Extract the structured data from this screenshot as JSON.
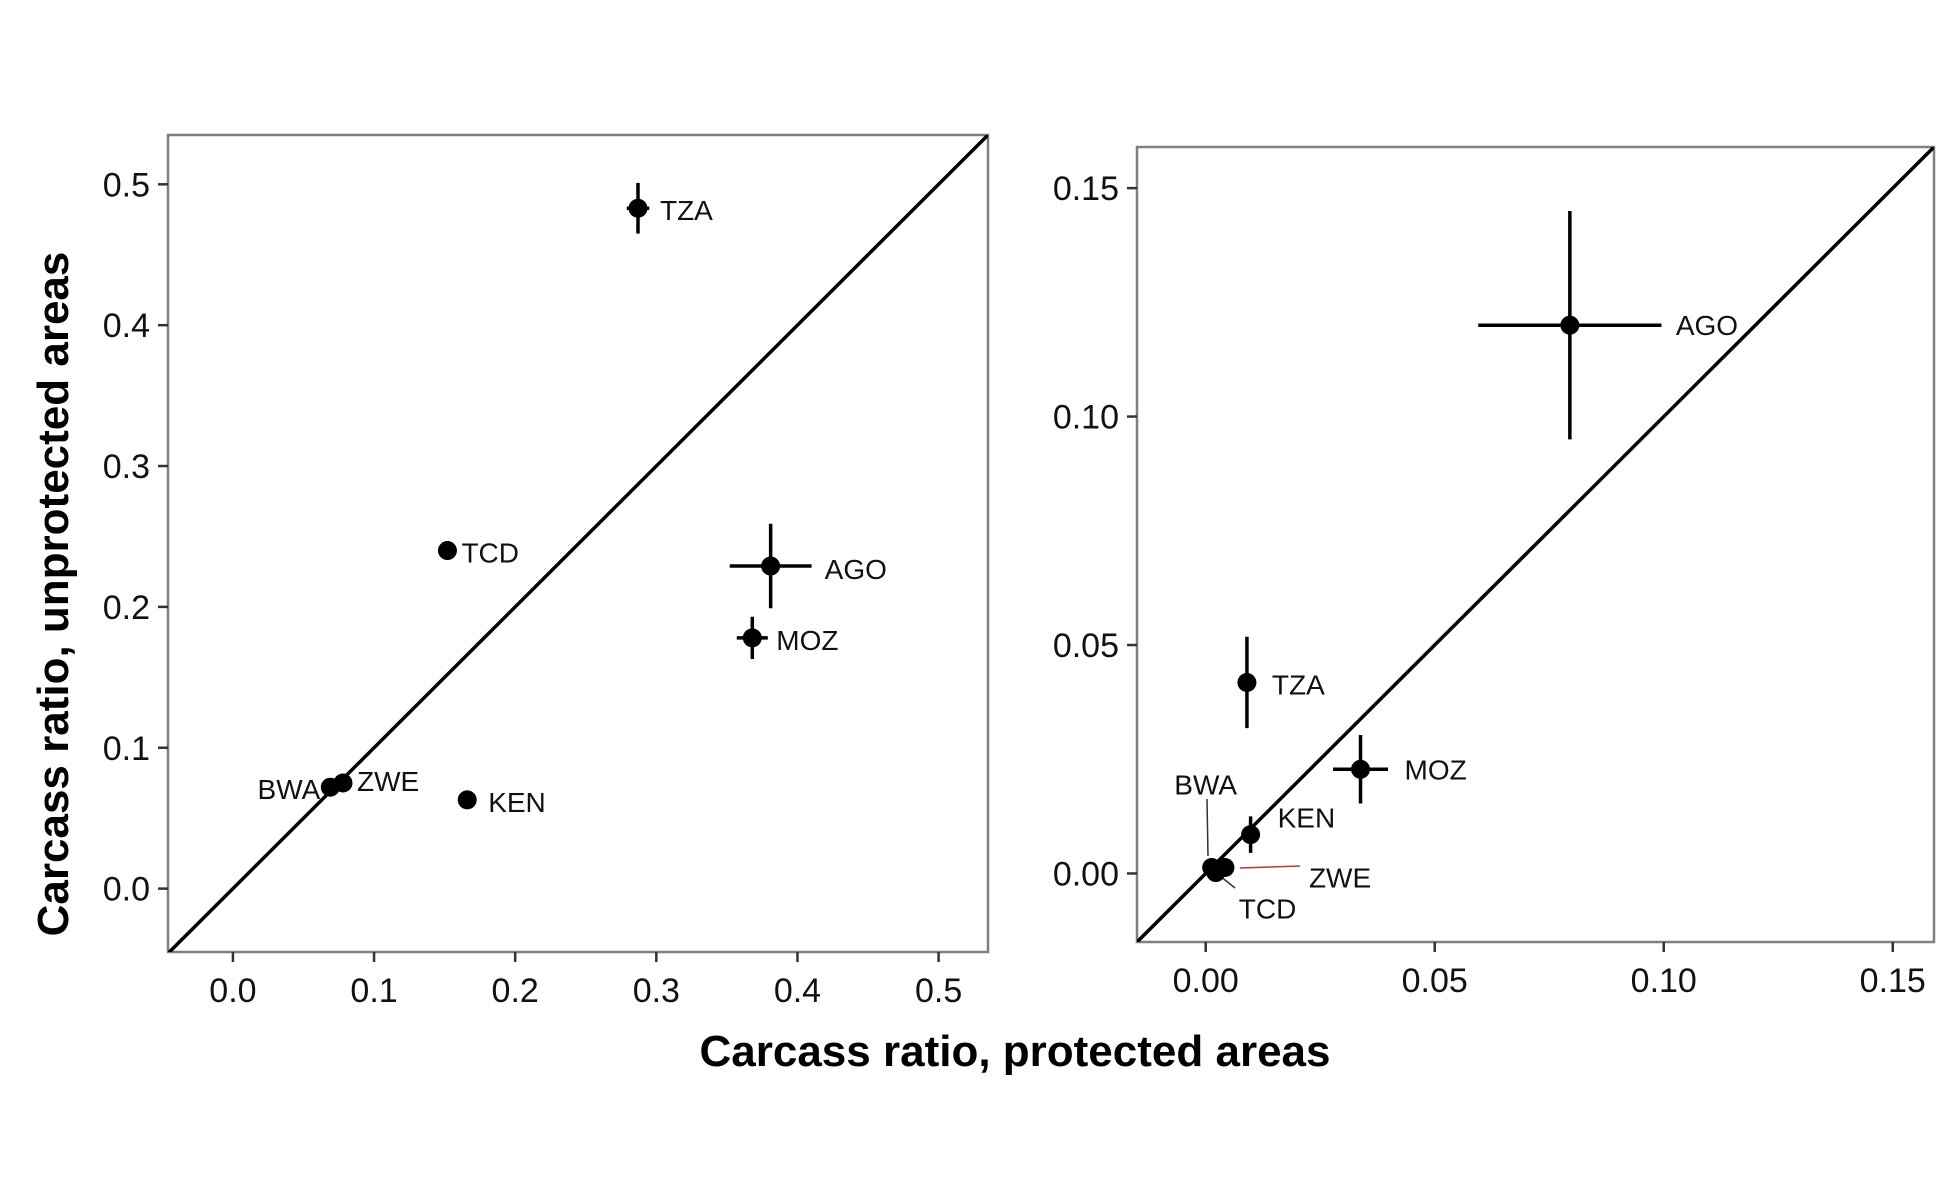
{
  "figure": {
    "xlabel": "Carcass ratio, protected areas",
    "ylabel": "Carcass ratio, unprotected areas"
  },
  "chart_data": [
    {
      "type": "scatter",
      "title": "",
      "xlim": [
        -0.046,
        0.535
      ],
      "ylim": [
        -0.045,
        0.535
      ],
      "xticks": [
        "0.0",
        "0.1",
        "0.2",
        "0.3",
        "0.4",
        "0.5"
      ],
      "yticks": [
        "0.0",
        "0.1",
        "0.2",
        "0.3",
        "0.4",
        "0.5"
      ],
      "xtick_values": [
        0,
        0.1,
        0.2,
        0.3,
        0.4,
        0.5
      ],
      "ytick_values": [
        0,
        0.1,
        0.2,
        0.3,
        0.4,
        0.5
      ],
      "reference_line": "y = x",
      "grid": false,
      "points": [
        {
          "label": "TZA",
          "x": 0.287,
          "y": 0.483,
          "xerr": 0.008,
          "yerr": 0.018
        },
        {
          "label": "TCD",
          "x": 0.152,
          "y": 0.24,
          "xerr": 0,
          "yerr": 0
        },
        {
          "label": "AGO",
          "x": 0.381,
          "y": 0.229,
          "xerr": 0.029,
          "yerr": 0.03
        },
        {
          "label": "MOZ",
          "x": 0.368,
          "y": 0.178,
          "xerr": 0.011,
          "yerr": 0.015
        },
        {
          "label": "BWA",
          "x": 0.069,
          "y": 0.072,
          "xerr": 0,
          "yerr": 0
        },
        {
          "label": "ZWE",
          "x": 0.078,
          "y": 0.075,
          "xerr": 0,
          "yerr": 0
        },
        {
          "label": "KEN",
          "x": 0.166,
          "y": 0.063,
          "xerr": 0.006,
          "yerr": 0
        }
      ]
    },
    {
      "type": "scatter",
      "title": "",
      "xlim": [
        -0.015,
        0.159
      ],
      "ylim": [
        -0.015,
        0.159
      ],
      "xticks": [
        "0.00",
        "0.05",
        "0.10",
        "0.15"
      ],
      "yticks": [
        "0.00",
        "0.05",
        "0.10",
        "0.15"
      ],
      "xtick_values": [
        0,
        0.05,
        0.1,
        0.15
      ],
      "ytick_values": [
        0,
        0.05,
        0.1,
        0.15
      ],
      "reference_line": "y = x",
      "grid": false,
      "points": [
        {
          "label": "AGO",
          "x": 0.0795,
          "y": 0.12,
          "xerr": 0.02,
          "yerr": 0.025
        },
        {
          "label": "TZA",
          "x": 0.009,
          "y": 0.0418,
          "xerr": 0,
          "yerr": 0.01
        },
        {
          "label": "MOZ",
          "x": 0.0338,
          "y": 0.0228,
          "xerr": 0.006,
          "yerr": 0.0075
        },
        {
          "label": "KEN",
          "x": 0.0098,
          "y": 0.0085,
          "xerr": 0,
          "yerr": 0.004
        },
        {
          "label": "BWA",
          "x": 0.0013,
          "y": 0.0013,
          "xerr": 0,
          "yerr": 0
        },
        {
          "label": "ZWE",
          "x": 0.0042,
          "y": 0.0013,
          "xerr": 0,
          "yerr": 0
        },
        {
          "label": "TCD",
          "x": 0.0022,
          "y": 0.0002,
          "xerr": 0,
          "yerr": 0
        }
      ]
    }
  ]
}
